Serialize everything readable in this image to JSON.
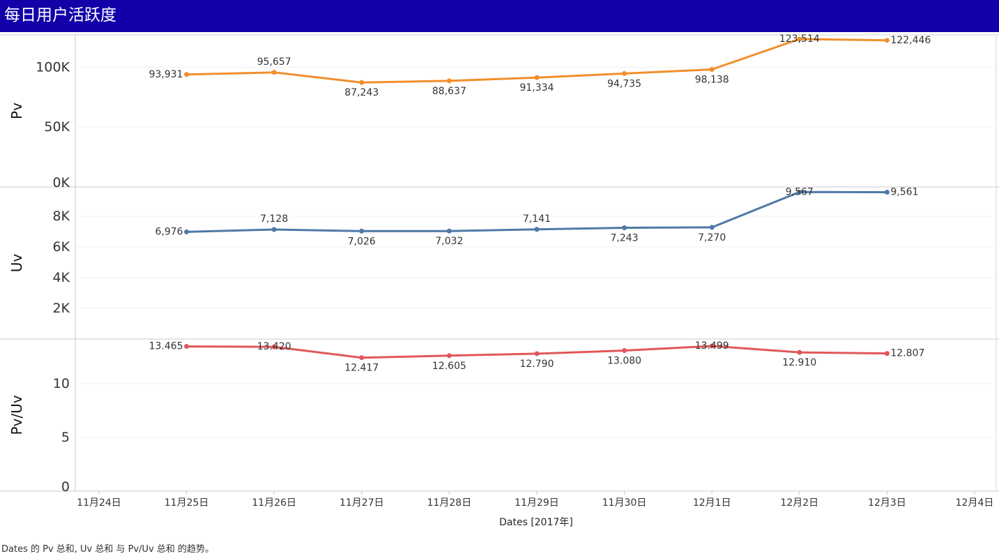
{
  "title": "每日用户活跃度",
  "caption": "Dates 的 Pv 总和, Uv 总和 与 Pv/Uv 总和 的趋势。",
  "colors": {
    "header_bg": "#1200a8",
    "pv": "#f28e2b",
    "uv": "#4e79a7",
    "pvuv": "#e15759"
  },
  "chart_data": {
    "type": "line",
    "x": [
      "2017-11-25",
      "2017-11-26",
      "2017-11-27",
      "2017-11-28",
      "2017-11-29",
      "2017-11-30",
      "2017-12-01",
      "2017-12-02",
      "2017-12-03"
    ],
    "x_range": [
      "2017-11-24",
      "2017-12-04"
    ],
    "x_tick_labels": [
      "11月24日",
      "11月25日",
      "11月26日",
      "11月27日",
      "11月28日",
      "11月29日",
      "11月30日",
      "12月1日",
      "12月2日",
      "12月3日",
      "12月4日"
    ],
    "xlabel": "Dates [2017年]",
    "grid": true,
    "panels": [
      {
        "ylabel": "Pv",
        "ylim": [
          0,
          127000
        ],
        "yticks": [
          0,
          50000,
          100000
        ],
        "ytick_labels": [
          "0K",
          "50K",
          "100K"
        ],
        "color": "#f28e2b",
        "values": [
          93931,
          95657,
          87243,
          88637,
          91334,
          94735,
          98138,
          123514,
          122446
        ],
        "labels": [
          "93,931",
          "95,657",
          "87,243",
          "88,637",
          "91,334",
          "94,735",
          "98,138",
          "123,514",
          "122,446"
        ],
        "label_pos": [
          "left",
          "above",
          "below",
          "below",
          "below",
          "below",
          "below",
          "center",
          "right"
        ]
      },
      {
        "ylabel": "Uv",
        "ylim": [
          0,
          9900
        ],
        "yticks": [
          2000,
          4000,
          6000,
          8000
        ],
        "ytick_labels": [
          "2K",
          "4K",
          "6K",
          "8K"
        ],
        "color": "#4e79a7",
        "values": [
          6976,
          7128,
          7026,
          7032,
          7141,
          7243,
          7270,
          9567,
          9561
        ],
        "labels": [
          "6,976",
          "7,128",
          "7,026",
          "7,032",
          "7,141",
          "7,243",
          "7,270",
          "9,567",
          "9,561"
        ],
        "label_pos": [
          "left",
          "above",
          "below",
          "below",
          "above",
          "below",
          "below",
          "center",
          "right"
        ]
      },
      {
        "ylabel": "Pv/Uv",
        "ylim": [
          0,
          14.15
        ],
        "yticks": [
          0,
          5,
          10
        ],
        "ytick_labels": [
          "0",
          "5",
          "10"
        ],
        "color": "#e15759",
        "values": [
          13.465,
          13.42,
          12.417,
          12.605,
          12.79,
          13.08,
          13.499,
          12.91,
          12.807
        ],
        "labels": [
          "13.465",
          "13.420",
          "12.417",
          "12.605",
          "12.790",
          "13.080",
          "13.499",
          "12.910",
          "12.807"
        ],
        "label_pos": [
          "left",
          "center",
          "below",
          "below",
          "below",
          "below",
          "center",
          "below",
          "right"
        ]
      }
    ]
  }
}
